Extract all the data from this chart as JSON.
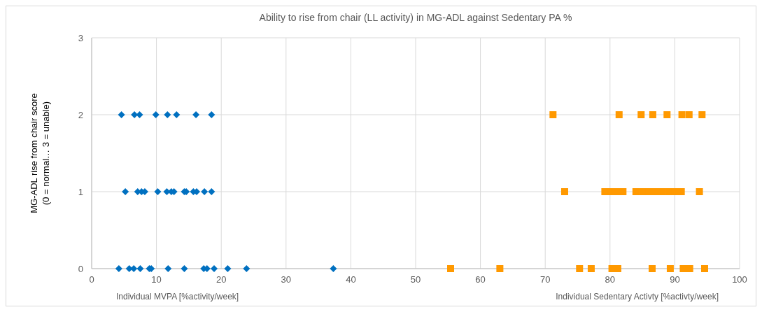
{
  "chart_data": {
    "type": "scatter",
    "title": "Ability to rise from chair (LL activity) in MG-ADL against Sedentary PA %",
    "ylabel": "MG-ADL rise from chair score\n(0 = normal… 3 = unable)",
    "annotations": [
      "Individual MVPA [%activity/week]",
      "Individual Sedentary Activty [%activty/week]"
    ],
    "xlim": [
      0,
      100
    ],
    "xticks": [
      0,
      10,
      20,
      30,
      40,
      50,
      60,
      70,
      80,
      90,
      100
    ],
    "ylim": [
      0,
      3
    ],
    "yticks": [
      0,
      1,
      2,
      3
    ],
    "grid": true,
    "series": [
      {
        "color": "#0070c0",
        "marker": "diamond",
        "x": [
          4.6,
          6.6,
          7.4,
          9.9,
          11.7,
          13.1,
          16.1,
          18.5,
          5.2,
          7.1,
          7.7,
          8.2,
          10.2,
          11.6,
          12.3,
          12.7,
          14.3,
          14.6,
          15.7,
          16.2,
          17.4,
          18.5,
          4.2,
          5.8,
          6.5,
          7.5,
          8.9,
          9.2,
          11.8,
          14.3,
          17.3,
          17.8,
          18.9,
          21.0,
          23.9,
          37.3
        ],
        "values": [
          2,
          2,
          2,
          2,
          2,
          2,
          2,
          2,
          1,
          1,
          1,
          1,
          1,
          1,
          1,
          1,
          1,
          1,
          1,
          1,
          1,
          1,
          0,
          0,
          0,
          0,
          0,
          0,
          0,
          0,
          0,
          0,
          0,
          0,
          0,
          0
        ]
      },
      {
        "color": "#ff9900",
        "marker": "square",
        "x": [
          71.2,
          81.4,
          84.8,
          86.6,
          88.8,
          91.1,
          92.2,
          94.2,
          73.0,
          79.2,
          80.2,
          81.2,
          82.0,
          84.0,
          85.0,
          86.0,
          87.0,
          88.0,
          89.0,
          90.0,
          91.0,
          93.8,
          55.4,
          63.0,
          75.3,
          77.1,
          80.3,
          81.2,
          86.5,
          89.3,
          91.3,
          92.3,
          94.6
        ],
        "values": [
          2,
          2,
          2,
          2,
          2,
          2,
          2,
          2,
          1,
          1,
          1,
          1,
          1,
          1,
          1,
          1,
          1,
          1,
          1,
          1,
          1,
          1,
          0,
          0,
          0,
          0,
          0,
          0,
          0,
          0,
          0,
          0,
          0
        ]
      }
    ]
  }
}
